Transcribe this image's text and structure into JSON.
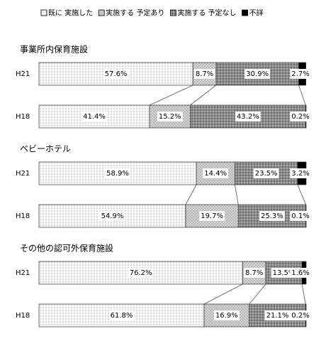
{
  "chart_data": {
    "type": "bar",
    "stacked": true,
    "horizontal": true,
    "groups": [
      "事業所内保育施設",
      "ベビーホテル",
      "その他の認可外保育施設"
    ],
    "categories": [
      "H21",
      "H18",
      "H21",
      "H18",
      "H21",
      "H18"
    ],
    "xlim": [
      0,
      100
    ],
    "series": [
      {
        "name": "既に 実施した",
        "color": "#f7f7f7",
        "values": [
          57.6,
          41.4,
          58.9,
          54.9,
          76.2,
          61.8
        ],
        "value_labels": [
          "57.6%",
          "41.4%",
          "58.9%",
          "54.9%",
          "76.2%",
          "61.8%"
        ]
      },
      {
        "name": "実施する 予定あり",
        "color": "#d6d6d6",
        "values": [
          8.7,
          15.2,
          14.4,
          19.7,
          8.7,
          16.9
        ],
        "value_labels": [
          "8.7%",
          "15.2%",
          "14.4%",
          "19.7%",
          "8.7%",
          "16.9%"
        ]
      },
      {
        "name": "実施する 予定なし",
        "color": "#8a8a8a",
        "values": [
          30.9,
          43.2,
          23.5,
          25.3,
          13.5,
          21.1
        ],
        "value_labels": [
          "30.9%",
          "43.2%",
          "23.5%",
          "25.3%",
          "13.5%",
          "21.1%"
        ]
      },
      {
        "name": "不詳",
        "color": "#000000",
        "values": [
          2.7,
          0.2,
          3.2,
          0.1,
          1.6,
          0.2
        ],
        "value_labels": [
          "2.7%",
          "0.2%",
          "3.2%",
          "0.1%",
          "1.6%",
          "0.2%"
        ]
      }
    ]
  }
}
